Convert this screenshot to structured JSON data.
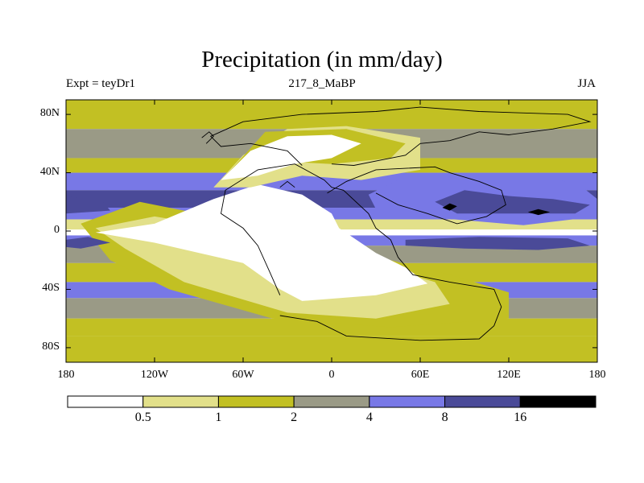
{
  "chart_data": {
    "type": "heatmap",
    "title": "Precipitation (in mm/day)",
    "subtitle_left": "Expt = teyDr1",
    "subtitle_center": "217_8_MaBP",
    "subtitle_right": "JJA",
    "xlim": [
      -180,
      180
    ],
    "ylim": [
      -90,
      90
    ],
    "x_ticks": [
      {
        "value": -180,
        "label": "180"
      },
      {
        "value": -120,
        "label": "120W"
      },
      {
        "value": -60,
        "label": "60W"
      },
      {
        "value": 0,
        "label": "0"
      },
      {
        "value": 60,
        "label": "60E"
      },
      {
        "value": 120,
        "label": "120E"
      },
      {
        "value": 180,
        "label": "180"
      }
    ],
    "y_ticks": [
      {
        "value": 80,
        "label": "80N"
      },
      {
        "value": 40,
        "label": "40N"
      },
      {
        "value": 0,
        "label": "0"
      },
      {
        "value": -40,
        "label": "40S"
      },
      {
        "value": -80,
        "label": "80S"
      }
    ],
    "colorbar": {
      "levels": [
        0.5,
        1,
        2,
        4,
        8,
        16
      ],
      "labels": [
        "0.5",
        "1",
        "2",
        "4",
        "8",
        "16"
      ],
      "colors": [
        "#ffffff",
        "#e2e08a",
        "#c2c023",
        "#9a9a86",
        "#7878e6",
        "#4a4a98",
        "#000000"
      ]
    },
    "zonal_bands": [
      {
        "lat": [
          70,
          90
        ],
        "class": 2
      },
      {
        "lat": [
          50,
          70
        ],
        "class": 3
      },
      {
        "lat": [
          40,
          50
        ],
        "class": 2
      },
      {
        "lat": [
          28,
          40
        ],
        "class": 4
      },
      {
        "lat": [
          16,
          28
        ],
        "class": 5
      },
      {
        "lat": [
          8,
          16
        ],
        "class": 4
      },
      {
        "lat": [
          1,
          8
        ],
        "class": 1
      },
      {
        "lat": [
          -3,
          1
        ],
        "class": 0
      },
      {
        "lat": [
          -10,
          -3
        ],
        "class": 4
      },
      {
        "lat": [
          -22,
          -10
        ],
        "class": 3
      },
      {
        "lat": [
          -35,
          -22
        ],
        "class": 2
      },
      {
        "lat": [
          -46,
          -35
        ],
        "class": 4
      },
      {
        "lat": [
          -60,
          -46
        ],
        "class": 3
      },
      {
        "lat": [
          -72,
          -60
        ],
        "class": 2
      },
      {
        "lat": [
          -90,
          -72
        ],
        "class": 2
      }
    ],
    "regions": [
      {
        "class": 2,
        "points": [
          [
            -130,
            20
          ],
          [
            -90,
            12
          ],
          [
            -40,
            -8
          ],
          [
            20,
            -15
          ],
          [
            80,
            -30
          ],
          [
            120,
            -42
          ],
          [
            120,
            -60
          ],
          [
            40,
            -66
          ],
          [
            -40,
            -60
          ],
          [
            -110,
            -40
          ],
          [
            -150,
            -20
          ],
          [
            -170,
            5
          ]
        ]
      },
      {
        "class": 1,
        "points": [
          [
            -120,
            10
          ],
          [
            -90,
            5
          ],
          [
            -40,
            -12
          ],
          [
            20,
            -20
          ],
          [
            70,
            -35
          ],
          [
            80,
            -50
          ],
          [
            30,
            -60
          ],
          [
            -30,
            -56
          ],
          [
            -100,
            -35
          ],
          [
            -140,
            -12
          ],
          [
            -160,
            2
          ]
        ]
      },
      {
        "class": 0,
        "points": [
          [
            -160,
            -1
          ],
          [
            -120,
            -8
          ],
          [
            -60,
            -22
          ],
          [
            -35,
            -40
          ],
          [
            -20,
            -48
          ],
          [
            30,
            -44
          ],
          [
            65,
            -36
          ],
          [
            50,
            -25
          ],
          [
            30,
            -15
          ],
          [
            5,
            2
          ],
          [
            0,
            12
          ],
          [
            -20,
            25
          ],
          [
            -50,
            32
          ],
          [
            -80,
            22
          ],
          [
            -120,
            5
          ]
        ]
      },
      {
        "class": 1,
        "points": [
          [
            -80,
            30
          ],
          [
            -60,
            52
          ],
          [
            -30,
            70
          ],
          [
            10,
            72
          ],
          [
            60,
            64
          ],
          [
            60,
            42
          ],
          [
            20,
            35
          ],
          [
            -20,
            38
          ],
          [
            -55,
            30
          ]
        ]
      },
      {
        "class": 2,
        "points": [
          [
            -70,
            40
          ],
          [
            -45,
            68
          ],
          [
            10,
            70
          ],
          [
            50,
            60
          ],
          [
            40,
            50
          ],
          [
            0,
            46
          ],
          [
            -40,
            48
          ]
        ]
      },
      {
        "class": 0,
        "points": [
          [
            -75,
            35
          ],
          [
            -55,
            55
          ],
          [
            -30,
            65
          ],
          [
            0,
            66
          ],
          [
            20,
            60
          ],
          [
            0,
            50
          ],
          [
            -25,
            46
          ],
          [
            -50,
            38
          ]
        ]
      },
      {
        "class": 4,
        "points": [
          [
            25,
            25
          ],
          [
            45,
            35
          ],
          [
            90,
            32
          ],
          [
            115,
            30
          ],
          [
            140,
            40
          ],
          [
            170,
            30
          ],
          [
            180,
            22
          ],
          [
            180,
            10
          ],
          [
            130,
            4
          ],
          [
            60,
            10
          ],
          [
            30,
            15
          ]
        ]
      },
      {
        "class": 5,
        "points": [
          [
            70,
            20
          ],
          [
            90,
            28
          ],
          [
            120,
            24
          ],
          [
            150,
            22
          ],
          [
            175,
            18
          ],
          [
            165,
            12
          ],
          [
            120,
            12
          ],
          [
            85,
            12
          ]
        ]
      },
      {
        "class": 6,
        "points": [
          [
            75,
            16
          ],
          [
            80,
            19
          ],
          [
            85,
            17
          ],
          [
            80,
            14
          ]
        ]
      },
      {
        "class": 6,
        "points": [
          [
            133,
            13
          ],
          [
            140,
            15
          ],
          [
            148,
            13
          ],
          [
            140,
            11
          ]
        ]
      },
      {
        "class": 5,
        "points": [
          [
            50,
            -6
          ],
          [
            100,
            -4
          ],
          [
            160,
            -5
          ],
          [
            175,
            -10
          ],
          [
            140,
            -13
          ],
          [
            90,
            -12
          ],
          [
            50,
            -10
          ]
        ]
      },
      {
        "class": 5,
        "points": [
          [
            -180,
            -6
          ],
          [
            -165,
            -4
          ],
          [
            -150,
            -8
          ],
          [
            -170,
            -12
          ],
          [
            -180,
            -11
          ]
        ]
      },
      {
        "class": 5,
        "points": [
          [
            -180,
            24
          ],
          [
            -155,
            20
          ],
          [
            -150,
            14
          ],
          [
            -180,
            12
          ]
        ]
      }
    ],
    "coastlines": [
      [
        [
          -35,
          -58
        ],
        [
          -10,
          -62
        ],
        [
          10,
          -72
        ],
        [
          60,
          -75
        ],
        [
          100,
          -74
        ],
        [
          110,
          -65
        ],
        [
          115,
          -52
        ],
        [
          110,
          -40
        ],
        [
          80,
          -35
        ],
        [
          55,
          -30
        ],
        [
          45,
          -18
        ],
        [
          40,
          -6
        ],
        [
          30,
          2
        ],
        [
          25,
          12
        ],
        [
          8,
          28
        ],
        [
          0,
          30
        ],
        [
          -5,
          35
        ],
        [
          -25,
          46
        ],
        [
          -50,
          42
        ],
        [
          -72,
          28
        ],
        [
          -75,
          12
        ],
        [
          -60,
          2
        ],
        [
          -50,
          -10
        ],
        [
          -42,
          -28
        ],
        [
          -35,
          -44
        ]
      ],
      [
        [
          -20,
          45
        ],
        [
          -30,
          55
        ],
        [
          -55,
          60
        ],
        [
          -75,
          58
        ],
        [
          -82,
          65
        ],
        [
          -60,
          75
        ],
        [
          -20,
          80
        ],
        [
          30,
          82
        ],
        [
          60,
          85
        ],
        [
          100,
          82
        ],
        [
          160,
          80
        ],
        [
          175,
          75
        ],
        [
          150,
          70
        ],
        [
          120,
          66
        ],
        [
          100,
          68
        ],
        [
          80,
          62
        ],
        [
          60,
          60
        ],
        [
          50,
          52
        ],
        [
          40,
          50
        ],
        [
          15,
          45
        ],
        [
          0,
          46
        ]
      ],
      [
        [
          -3,
          26
        ],
        [
          10,
          34
        ],
        [
          30,
          42
        ],
        [
          70,
          44
        ],
        [
          80,
          40
        ],
        [
          100,
          34
        ],
        [
          115,
          28
        ],
        [
          118,
          18
        ],
        [
          105,
          10
        ],
        [
          85,
          5
        ],
        [
          65,
          12
        ],
        [
          45,
          18
        ],
        [
          30,
          26
        ]
      ],
      [
        [
          -85,
          60
        ],
        [
          -80,
          65
        ],
        [
          -83,
          68
        ],
        [
          -88,
          64
        ]
      ],
      [
        [
          -35,
          30
        ],
        [
          -30,
          34
        ],
        [
          -25,
          30
        ]
      ]
    ]
  }
}
